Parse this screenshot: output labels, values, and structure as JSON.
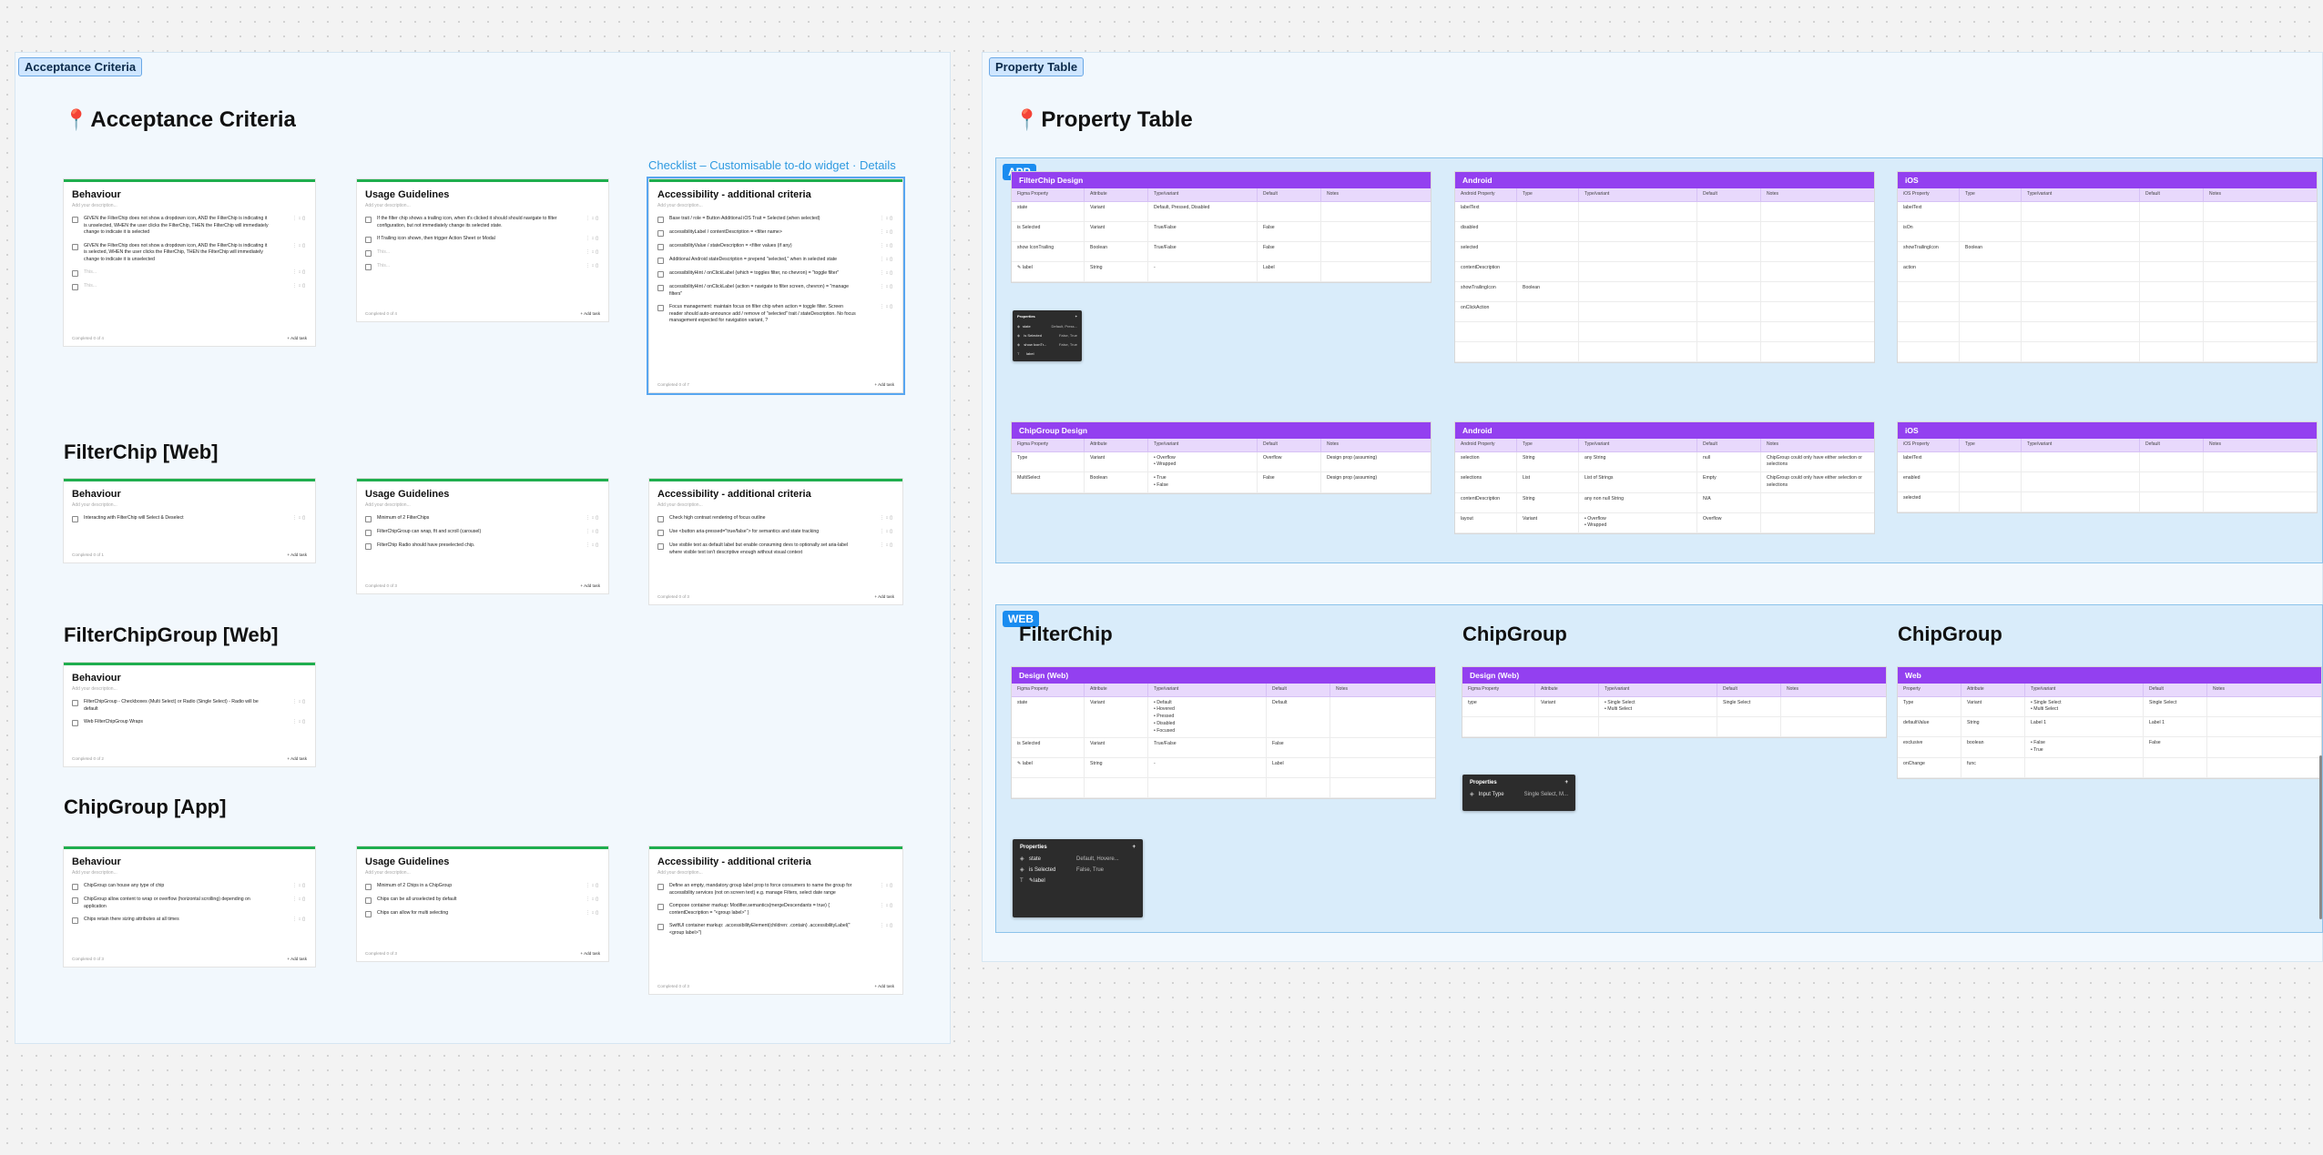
{
  "acceptance": {
    "tag": "Acceptance Criteria",
    "title": "Acceptance Criteria",
    "widget_link": "Checklist – Customisable to-do widget",
    "widget_details": "Details",
    "section_web": "FilterChip [Web]",
    "section_group_web": "FilterChipGroup [Web]",
    "section_group_app": "ChipGroup [App]",
    "add_desc": "Add your description...",
    "add_task": "+ Add task",
    "card_app_behaviour": {
      "title": "Behaviour",
      "tasks": [
        "GIVEN the FilterChip does not show a dropdown icon, AND the FilterChip is indicating it is unselected, WHEN the user clicks the FilterChip, THEN the FilterChip will immediately change to indicate it is selected",
        "GIVEN the FilterChip does not show a dropdown icon, AND the FilterChip is indicating it is selected, WHEN the user clicks the FilterChip, THEN the FilterChip will immediately change to indicate it is unselected",
        "This...",
        "This..."
      ],
      "foot": "Completed 0 of 4"
    },
    "card_app_usage": {
      "title": "Usage Guidelines",
      "tasks": [
        "If the filter chip shows a trailing icon, when it's clicked it should should navigate to filter configuration, but not immediately change its selected state.",
        "If Trailing icon shown, then trigger Action Sheet or Modal",
        "This...",
        "This..."
      ],
      "foot": "Completed 0 of 4"
    },
    "card_app_access": {
      "title": "Accessibility - additional criteria",
      "tasks": [
        "Base trait / role = Button Additional iOS Trait = Selected (when selected)",
        "accessibilityLabel / contentDescription = <filter name>",
        "accessibilityValue / stateDescription = <filter values (if any)",
        "Additional Android stateDescription = prepend \"selected,\" when in selected state",
        "accessibilityHint / onClickLabel (which = toggles filter, no chevron) = \"toggle filter\"",
        "accessibilityHint / onClickLabel (action = navigate to filter screen, chevron) = \"manage filters\"",
        "Focus management: maintain focus on filter chip when action = toggle filter. Screen reader should auto-announce add / remove of \"selected\" trait / stateDescription. No focus management expected for navigation variant, ?"
      ],
      "foot": "Completed 0 of 7"
    },
    "card_web_behaviour": {
      "title": "Behaviour",
      "tasks": [
        "Interacting with FilterChip will Select & Deselect"
      ],
      "foot": "Completed 0 of 1"
    },
    "card_web_usage": {
      "title": "Usage Guidelines",
      "tasks": [
        "Minimum of 2 FilterChips",
        "FilterChipGroup can wrap, fit and scroll (carousel)",
        "FilterChip Radio should have preselected chip."
      ],
      "foot": "Completed 0 of 3"
    },
    "card_web_access": {
      "title": "Accessibility - additional criteria",
      "tasks": [
        "Check high contrast rendering of focus outline",
        "Use <button aria-pressed=\"true/false\"> for semantics and state tracking",
        "Use visible text as default label but enable consuming devs to optionally set aria-label where visible text isn't descriptive enough without visual context"
      ],
      "foot": "Completed 0 of 3"
    },
    "card_group_web_behaviour": {
      "title": "Behaviour",
      "tasks": [
        "FilterChipGroup - Checkboxes (Multi Select) or Radio (Single Select) - Radio will be default",
        "Web FilterChipGroup Wraps"
      ],
      "foot": "Completed 0 of 2"
    },
    "card_group_app_behaviour": {
      "title": "Behaviour",
      "tasks": [
        "ChipGroup can house any type of chip",
        "ChipGroup allow content to wrap or overflow (horizontal scrolling) depending on application",
        "Chips retain there sizing attributes at all times"
      ],
      "foot": "Completed 0 of 3"
    },
    "card_group_app_usage": {
      "title": "Usage Guidelines",
      "tasks": [
        "Minimum of 2 Chips in a ChipGroup",
        "Chips can be all unselected by default",
        "Chips can allow for multi selecting"
      ],
      "foot": "Completed 0 of 3"
    },
    "card_group_app_access": {
      "title": "Accessibility - additional criteria",
      "tasks": [
        "Define an empty, mandatory group label prop to force consumers to name the group for accessibility services (not on screen text) e.g. manage Filters, select date range",
        "Compose container markup: Modifier.semantics(mergeDescendants = true) { contentDescription = \"<group label>\" }",
        "SwiftUI container markup: .accessibilityElement(children: .contain) .accessibilityLabel(\"<group label>\")"
      ],
      "foot": "Completed 0 of 3"
    }
  },
  "property": {
    "tag": "Property Table",
    "title": "Property Table",
    "app_badge": "APP",
    "web_badge": "WEB",
    "web_title_filterchip": "FilterChip",
    "web_title_chipgroup1": "ChipGroup",
    "web_title_chipgroup2": "ChipGroup",
    "filterchip_design": {
      "title": "FilterChip Design",
      "cols": [
        "Figma Property",
        "Attribute",
        "Type/variant",
        "Default",
        "Notes"
      ],
      "rows": [
        [
          "state",
          "Variant",
          "Default, Pressed, Disabled",
          "",
          ""
        ],
        [
          "is Selected",
          "Variant",
          "True/False",
          "False",
          ""
        ],
        [
          "show IconTrailing",
          "Boolean",
          "True/False",
          "False",
          ""
        ],
        [
          "✎ label",
          "String",
          "-",
          "Label",
          ""
        ]
      ]
    },
    "filterchip_android": {
      "title": "Android",
      "cols": [
        "Android Property",
        "Type",
        "Type/variant",
        "Default",
        "Notes"
      ],
      "rows": [
        [
          "labelText",
          "",
          "",
          "",
          ""
        ],
        [
          "disabled",
          "",
          "",
          "",
          ""
        ],
        [
          "selected",
          "",
          "",
          "",
          ""
        ],
        [
          "contentDescription",
          "",
          "",
          "",
          ""
        ],
        [
          "showTrailingIcon",
          "Boolean",
          "",
          "",
          ""
        ],
        [
          "onClickAction",
          "",
          "",
          "",
          ""
        ],
        [
          "",
          "",
          "",
          "",
          ""
        ],
        [
          "",
          "",
          "",
          "",
          ""
        ]
      ]
    },
    "filterchip_ios": {
      "title": "iOS",
      "cols": [
        "iOS Property",
        "Type",
        "Type/variant",
        "Default",
        "Notes"
      ],
      "rows": [
        [
          "labelText",
          "",
          "",
          "",
          ""
        ],
        [
          "isOn",
          "",
          "",
          "",
          ""
        ],
        [
          "showTrailingIcon",
          "Boolean",
          "",
          "",
          ""
        ],
        [
          "action",
          "",
          "",
          "",
          ""
        ],
        [
          "",
          "",
          "",
          "",
          ""
        ],
        [
          "",
          "",
          "",
          "",
          ""
        ],
        [
          "",
          "",
          "",
          "",
          ""
        ],
        [
          "",
          "",
          "",
          "",
          ""
        ]
      ]
    },
    "chipgroup_design": {
      "title": "ChipGroup Design",
      "cols": [
        "Figma Property",
        "Attribute",
        "Type/variant",
        "Default",
        "Notes"
      ],
      "rows": [
        [
          "Type",
          "Variant",
          "• Overflow\n• Wrapped",
          "Overflow",
          "Design prop (assuming)"
        ],
        [
          "MultiSelect",
          "Boolean",
          "• True\n• False",
          "False",
          "Design prop (assuming)"
        ]
      ]
    },
    "chipgroup_android": {
      "title": "Android",
      "cols": [
        "Android Property",
        "Type",
        "Type/variant",
        "Default",
        "Notes"
      ],
      "rows": [
        [
          "selection",
          "String",
          "any String",
          "null",
          "ChipGroup could only have either selection or selections"
        ],
        [
          "selections",
          "List",
          "List of Strings",
          "Empty",
          "ChipGroup could only have either selection or selections"
        ],
        [
          "contentDescription",
          "String",
          "any non null String",
          "N/A",
          ""
        ],
        [
          "layout",
          "Variant",
          "• Overflow\n• Wrapped",
          "Overflow",
          ""
        ]
      ]
    },
    "chipgroup_ios": {
      "title": "iOS",
      "cols": [
        "iOS Property",
        "Type",
        "Type/variant",
        "Default",
        "Notes"
      ],
      "rows": [
        [
          "labelText",
          "",
          "",
          "",
          ""
        ],
        [
          "enabled",
          "",
          "",
          "",
          ""
        ],
        [
          "selected",
          "",
          "",
          "",
          ""
        ]
      ]
    },
    "web_filterchip_design": {
      "title": "Design (Web)",
      "cols": [
        "Figma Property",
        "Attribute",
        "Type/variant",
        "Default",
        "Notes"
      ],
      "rows": [
        [
          "state",
          "Variant",
          "• Default\n• Hovered\n• Pressed\n• Disabled\n• Focused",
          "Default",
          ""
        ],
        [
          "is Selected",
          "Variant",
          "True/False",
          "False",
          ""
        ],
        [
          "✎ label",
          "String",
          "-",
          "Label",
          ""
        ],
        [
          "",
          "",
          "",
          "",
          ""
        ]
      ]
    },
    "web_chipgroup_design": {
      "title": "Design (Web)",
      "cols": [
        "Figma Property",
        "Attribute",
        "Type/variant",
        "Default",
        "Notes"
      ],
      "rows": [
        [
          "type",
          "Variant",
          "• Single Select\n• Multi Select",
          "Single Select",
          ""
        ],
        [
          "",
          "",
          "",
          "",
          ""
        ]
      ]
    },
    "web_chipgroup_web": {
      "title": "Web",
      "cols": [
        "Property",
        "Attribute",
        "Type/variant",
        "Default",
        "Notes"
      ],
      "rows": [
        [
          "Type",
          "Variant",
          "• Single Select\n• Multi Select",
          "Single Select",
          ""
        ],
        [
          "defaultValue",
          "String",
          "Label 1",
          "Label 1",
          ""
        ],
        [
          "exclusive",
          "boolean",
          "• False\n• True",
          "False",
          ""
        ],
        [
          "onChange",
          "func",
          "",
          "",
          ""
        ]
      ]
    },
    "panel_app": {
      "title": "Properties",
      "rows": [
        [
          "◈",
          "state",
          "Default, Press..."
        ],
        [
          "◈",
          "is Selected",
          "False, True"
        ],
        [
          "◈",
          "show IconTr...",
          "False, True"
        ],
        [
          "T",
          "label",
          ""
        ]
      ]
    },
    "panel_web_group": {
      "title": "Properties",
      "rows": [
        [
          "◈",
          "Input Type",
          "Single Select, M..."
        ]
      ]
    },
    "panel_web_chip": {
      "title": "Properties",
      "rows": [
        [
          "◈",
          "state",
          "Default, Hovere..."
        ],
        [
          "◈",
          "is Selected",
          "False, True"
        ],
        [
          "T",
          "✎label",
          ""
        ]
      ]
    }
  }
}
